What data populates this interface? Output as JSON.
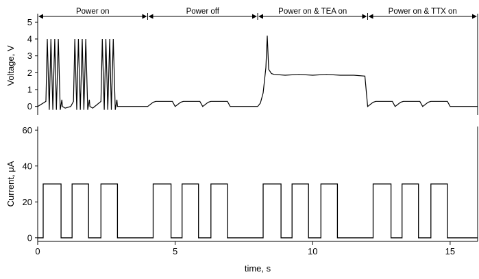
{
  "chart_data": [
    {
      "type": "line",
      "panel": "top",
      "ylabel": "Voltage, V",
      "xlim": [
        0,
        16
      ],
      "ylim": [
        -0.5,
        5.5
      ],
      "yticks": [
        0,
        1,
        2,
        3,
        4,
        5
      ],
      "grid": false,
      "phases": [
        {
          "label": "Power on",
          "start": 0,
          "end": 4
        },
        {
          "label": "Power off",
          "start": 4,
          "end": 8
        },
        {
          "label": "Power on & TEA on",
          "start": 8,
          "end": 12
        },
        {
          "label": "Power on & TTX on",
          "start": 12,
          "end": 16
        }
      ],
      "series": [
        {
          "x": [
            0,
            0.3,
            0.35,
            0.42,
            0.48,
            0.55,
            0.62,
            0.68,
            0.75,
            0.82,
            0.88,
            0.9,
            1.0,
            1.2,
            1.3,
            1.35,
            1.42,
            1.48,
            1.55,
            1.62,
            1.68,
            1.75,
            1.82,
            1.88,
            1.9,
            2.0,
            2.3,
            2.35,
            2.42,
            2.48,
            2.55,
            2.62,
            2.68,
            2.75,
            2.82,
            2.88,
            2.9,
            3.0,
            3.2,
            4.0,
            4.2,
            4.3,
            4.9,
            5.0,
            5.2,
            5.3,
            5.9,
            6.0,
            6.2,
            6.3,
            6.9,
            7.0,
            8.0,
            8.1,
            8.2,
            8.3,
            8.35,
            8.4,
            8.5,
            8.6,
            9.0,
            9.5,
            10.0,
            10.5,
            11.0,
            11.5,
            11.9,
            12.0,
            12.2,
            12.3,
            12.9,
            13.0,
            13.2,
            13.3,
            13.9,
            14.0,
            14.2,
            14.3,
            14.9,
            15.0,
            15.5,
            16.0
          ],
          "y": [
            0,
            0.3,
            4.0,
            -0.2,
            4.0,
            -0.2,
            4.0,
            -0.2,
            4.0,
            -0.2,
            0.4,
            0.0,
            -0.1,
            0.0,
            0.3,
            4.0,
            -0.2,
            4.0,
            -0.2,
            4.0,
            -0.2,
            4.0,
            -0.2,
            0.4,
            0.0,
            -0.1,
            0.3,
            4.0,
            -0.2,
            4.0,
            -0.2,
            4.0,
            -0.2,
            4.0,
            -0.2,
            0.4,
            0.0,
            0.0,
            0.0,
            0.0,
            0.25,
            0.3,
            0.3,
            0.0,
            0.25,
            0.3,
            0.3,
            0.0,
            0.25,
            0.3,
            0.3,
            0.0,
            0.0,
            0.2,
            0.8,
            2.3,
            4.2,
            2.2,
            1.95,
            1.9,
            1.85,
            1.9,
            1.85,
            1.9,
            1.85,
            1.85,
            1.8,
            0.0,
            0.25,
            0.3,
            0.3,
            0.0,
            0.25,
            0.3,
            0.3,
            0.0,
            0.25,
            0.3,
            0.3,
            0.0,
            0.0,
            0.0
          ]
        }
      ]
    },
    {
      "type": "line",
      "panel": "bottom",
      "xlabel": "time, s",
      "ylabel": "Current, μA",
      "xlim": [
        0,
        16
      ],
      "ylim": [
        -2,
        62
      ],
      "xticks": [
        0,
        5,
        10,
        15
      ],
      "yticks": [
        0,
        20,
        40,
        60
      ],
      "grid": false,
      "series": [
        {
          "x": [
            0,
            0.2,
            0.2,
            0.85,
            0.85,
            1.25,
            1.25,
            1.85,
            1.85,
            2.3,
            2.3,
            2.9,
            2.9,
            4.2,
            4.2,
            4.85,
            4.85,
            5.25,
            5.25,
            5.85,
            5.85,
            6.3,
            6.3,
            6.9,
            6.9,
            8.2,
            8.2,
            8.85,
            8.85,
            9.25,
            9.25,
            9.85,
            9.85,
            10.3,
            10.3,
            10.9,
            10.9,
            12.2,
            12.2,
            12.85,
            12.85,
            13.25,
            13.25,
            13.85,
            13.85,
            14.3,
            14.3,
            14.9,
            14.9,
            16.0
          ],
          "y": [
            0,
            0,
            30,
            30,
            0,
            0,
            30,
            30,
            0,
            0,
            30,
            30,
            0,
            0,
            30,
            30,
            0,
            0,
            30,
            30,
            0,
            0,
            30,
            30,
            0,
            0,
            30,
            30,
            0,
            0,
            30,
            30,
            0,
            0,
            30,
            30,
            0,
            0,
            30,
            30,
            0,
            0,
            30,
            30,
            0,
            0,
            30,
            30,
            0,
            0
          ]
        }
      ]
    }
  ]
}
